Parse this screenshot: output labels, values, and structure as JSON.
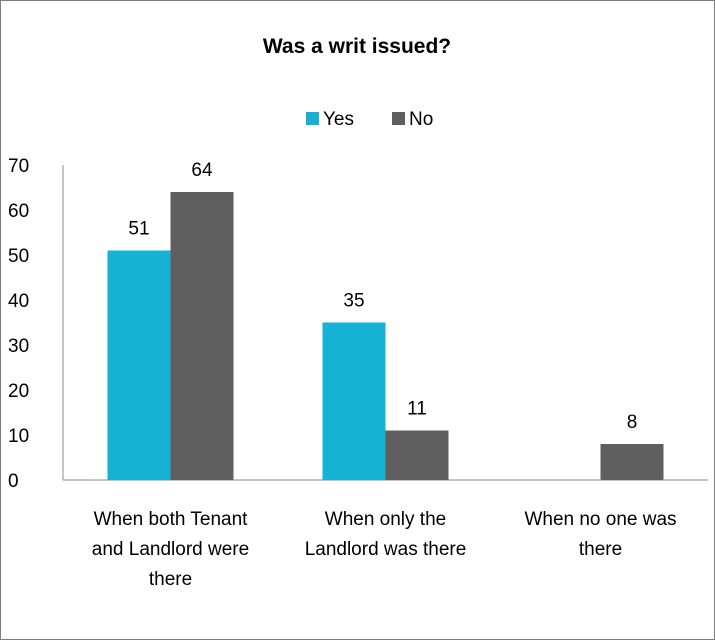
{
  "chart_data": {
    "type": "bar",
    "title": "Was a writ issued?",
    "categories": [
      [
        "When both Tenant",
        "and Landlord were",
        "there"
      ],
      [
        "When only the",
        "Landlord was there"
      ],
      [
        "When no one was",
        "there"
      ]
    ],
    "series": [
      {
        "name": "Yes",
        "color": "#17b1d3",
        "values": [
          51,
          35,
          null
        ],
        "labels": [
          "51",
          "35",
          ""
        ]
      },
      {
        "name": "No",
        "color": "#5f5f5f",
        "values": [
          64,
          11,
          8
        ],
        "labels": [
          "64",
          "11",
          "8"
        ]
      }
    ],
    "ylim": [
      0,
      70
    ],
    "yticks": [
      "0",
      "10",
      "20",
      "30",
      "40",
      "50",
      "60",
      "70"
    ],
    "legend_position": "top",
    "grid": false,
    "xlabel": "",
    "ylabel": ""
  }
}
